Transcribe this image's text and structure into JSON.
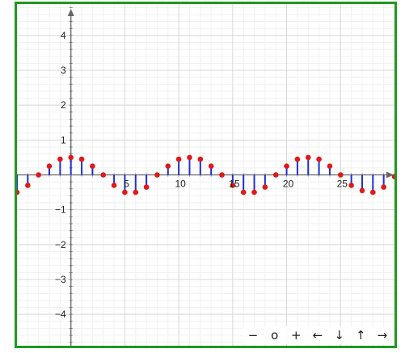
{
  "chart_data": {
    "type": "stem",
    "x": [
      -5,
      -4,
      -3,
      -2,
      -1,
      0,
      1,
      2,
      3,
      4,
      5,
      6,
      7,
      8,
      9,
      10,
      11,
      12,
      13,
      14,
      15,
      16,
      17,
      18,
      19,
      20,
      21,
      22,
      23,
      24,
      25,
      26,
      27,
      28,
      29,
      30
    ],
    "y": [
      -0.5,
      -0.3,
      0.0,
      0.25,
      0.45,
      0.5,
      0.45,
      0.25,
      0.0,
      -0.3,
      -0.5,
      -0.5,
      -0.35,
      0.0,
      0.25,
      0.45,
      0.5,
      0.45,
      0.25,
      0.0,
      -0.3,
      -0.5,
      -0.5,
      -0.35,
      0.0,
      0.25,
      0.45,
      0.5,
      0.45,
      0.25,
      0.0,
      -0.3,
      -0.45,
      -0.5,
      -0.35,
      -0.05
    ],
    "xlim": [
      -5,
      30
    ],
    "ylim": [
      -4.9,
      4.9
    ],
    "x_ticks": [
      5,
      10,
      15,
      20,
      25
    ],
    "y_ticks": [
      4,
      3,
      2,
      1,
      -1,
      -2,
      -3,
      -4
    ],
    "x_tick_labels": [
      "5",
      "10",
      "15",
      "20",
      "25"
    ],
    "y_tick_labels": [
      "4",
      "3",
      "2",
      "1",
      "−1",
      "−2",
      "−3",
      "−4"
    ],
    "grid": true,
    "title": "",
    "xlabel": "",
    "ylabel": "",
    "colors": {
      "stem": "#1f2fd6",
      "point": "#e01919",
      "grid": "#d9d9d9",
      "axis": "#666666",
      "frame": "#1e9a1e"
    }
  },
  "nav": {
    "zoom_out": "−",
    "reset": "o",
    "zoom_in": "+",
    "left": "←",
    "down": "↓",
    "up": "↑",
    "right": "→"
  }
}
